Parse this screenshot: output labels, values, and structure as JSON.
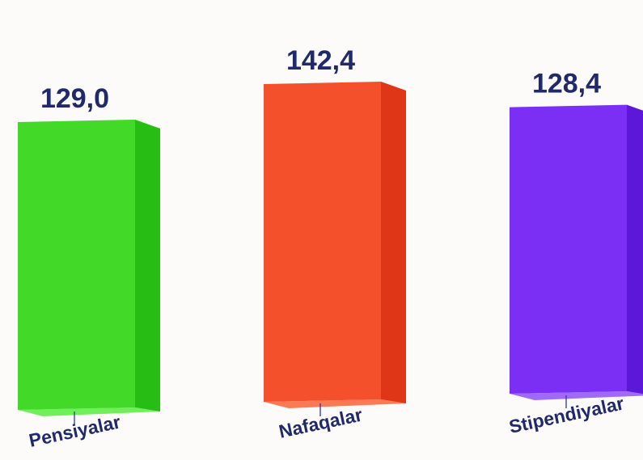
{
  "chart_data": {
    "type": "bar",
    "categories": [
      "Pensiyalar",
      "Nafaqalar",
      "Stipendiyalar"
    ],
    "values": [
      129.0,
      142.4,
      128.4
    ],
    "value_labels": [
      "129,0",
      "142,4",
      "128,4"
    ],
    "colors": [
      {
        "front": "#42d929",
        "side": "#27bd14",
        "top": "#6ff05a"
      },
      {
        "front": "#f5502c",
        "side": "#de3616",
        "top": "#fb7a55"
      },
      {
        "front": "#7b2ff5",
        "side": "#5d17d8",
        "top": "#a06af9"
      }
    ],
    "label_color": "#202a6a",
    "grid": false,
    "legend": "none"
  }
}
